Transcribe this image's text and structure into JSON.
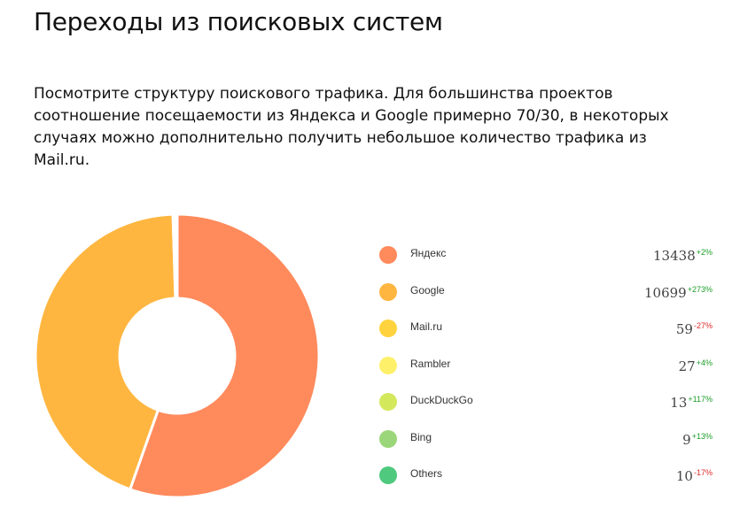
{
  "page": {
    "title": "Переходы из поисковых систем",
    "description": "Посмотрите структуру поискового трафика. Для большинства проектов соотношение посещаемости из Яндекса и Google примерно 70/30,  в некоторых случаях можно дополнительно получить небольшое количество трафика из Mail.ru."
  },
  "chart_data": {
    "type": "pie",
    "subtype": "donut",
    "title": "",
    "categories": [
      "Яндекс",
      "Google",
      "Mail.ru",
      "Rambler",
      "DuckDuckGo",
      "Bing",
      "Others"
    ],
    "values": [
      13438,
      10699,
      59,
      27,
      13,
      9,
      10
    ],
    "changes": [
      "+2%",
      "+273%",
      "-27%",
      "+4%",
      "+117%",
      "+13%",
      "-17%"
    ],
    "change_positive": [
      true,
      true,
      false,
      true,
      true,
      true,
      false
    ],
    "colors": [
      "#ff8a5c",
      "#ffb640",
      "#ffd33d",
      "#fff06a",
      "#d4e85c",
      "#9cd67a",
      "#4ec97e"
    ],
    "legend_position": "right"
  }
}
